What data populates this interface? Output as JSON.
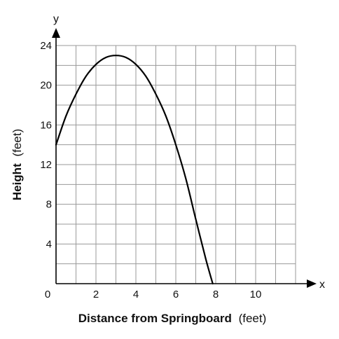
{
  "chart_data": {
    "type": "line",
    "x_axis_letter": "x",
    "y_axis_letter": "y",
    "xlabel_bold": "Distance from Springboard",
    "xlabel_unit": "(feet)",
    "ylabel_bold": "Height",
    "ylabel_unit": "(feet)",
    "xlim": [
      0,
      12
    ],
    "ylim": [
      0,
      24
    ],
    "x_grid_step": 1,
    "y_grid_step": 2,
    "x_ticks": [
      0,
      2,
      4,
      6,
      8,
      10
    ],
    "y_ticks": [
      4,
      8,
      12,
      16,
      20,
      24
    ],
    "grid": true,
    "series": [
      {
        "x": [
          0,
          0.5,
          1,
          1.5,
          2,
          2.5,
          3,
          3.5,
          4,
          4.5,
          5,
          5.5,
          6,
          6.5,
          7,
          7.5,
          7.85
        ],
        "y": [
          14,
          16.9,
          19.1,
          20.9,
          22.1,
          22.8,
          23,
          22.8,
          22.1,
          20.9,
          19.1,
          16.9,
          14,
          10.6,
          6.5,
          2.5,
          0
        ]
      }
    ]
  }
}
